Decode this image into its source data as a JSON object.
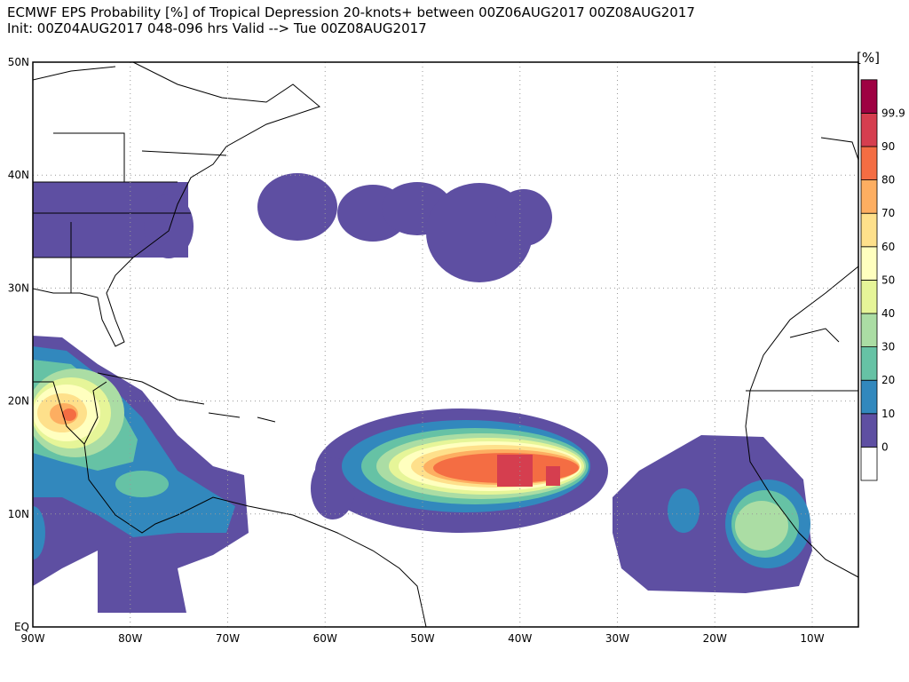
{
  "header": {
    "line1": "ECMWF EPS Probability [%] of Tropical Depression 20-knots+ between 00Z06AUG2017 00Z08AUG2017",
    "line2": "Init: 00Z04AUG2017 048-096 hrs Valid --> Tue 00Z08AUG2017"
  },
  "map": {
    "lat_labels": [
      "50N",
      "40N",
      "30N",
      "20N",
      "10N",
      "EQ"
    ],
    "lon_labels": [
      "90W",
      "80W",
      "70W",
      "60W",
      "50W",
      "40W",
      "30W",
      "20W",
      "10W"
    ]
  },
  "colorbar": {
    "unit": "[%]",
    "labels": [
      "0",
      "10",
      "20",
      "30",
      "40",
      "50",
      "60",
      "70",
      "80",
      "90",
      "99.9"
    ],
    "colors": [
      "#ffffff",
      "#5e4fa2",
      "#3288bd",
      "#66c2a5",
      "#abdda4",
      "#e6f598",
      "#ffffbf",
      "#fee08b",
      "#fdae61",
      "#f46d43",
      "#d53e4f",
      "#9e0142"
    ]
  }
}
